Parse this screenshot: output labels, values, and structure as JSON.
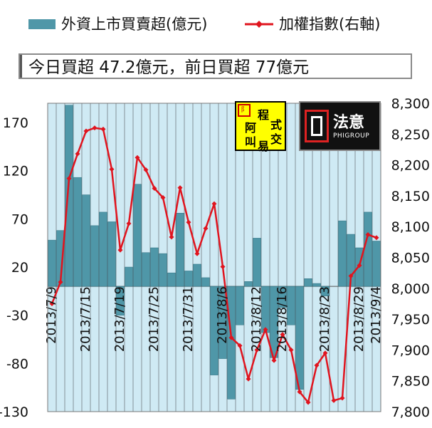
{
  "legend": {
    "bar_label": "外資上市買賣超(億元)",
    "line_label": "加權指數(右軸)"
  },
  "summary_text": "今日買超 47.2億元，前日買超 77億元",
  "logos": {
    "logo1_text": [
      "程",
      "式",
      "阿",
      "交",
      "叫",
      "易"
    ],
    "logo2_brand": "法意",
    "logo2_sub": "PHIGROUP"
  },
  "colors": {
    "bar": "#4f97a8",
    "line": "#e0141e",
    "plot_bg": "#cfeaf4",
    "grid": "#7c8a90"
  },
  "chart_data": {
    "type": "bar",
    "x_tick_labels": [
      "2013/7/9",
      "2013/7/15",
      "2013/7/19",
      "2013/7/25",
      "2013/7/31",
      "2013/8/6",
      "2013/8/12",
      "2013/8/16",
      "2013/8/23",
      "2013/8/29",
      "2013/9/4"
    ],
    "series": [
      {
        "name": "外資上市買賣超(億元)",
        "axis": "left",
        "values": [
          48,
          58,
          188,
          113,
          95,
          63,
          77,
          67,
          -30,
          20,
          106,
          35,
          40,
          34,
          14,
          76,
          16,
          23,
          9,
          -92,
          -75,
          -117,
          -40,
          5,
          50,
          -48,
          -74,
          -22,
          -40,
          -107,
          8,
          3,
          -10,
          0,
          68,
          54,
          40,
          77,
          47
        ]
      },
      {
        "name": "加權指數(右軸)",
        "axis": "right",
        "values": [
          7975,
          8010,
          8178,
          8218,
          8255,
          8260,
          8258,
          8193,
          8062,
          8105,
          8212,
          8192,
          8162,
          8147,
          8083,
          8163,
          8107,
          8056,
          8097,
          8137,
          8035,
          7920,
          7907,
          7853,
          7900,
          7933,
          7883,
          7925,
          7900,
          7832,
          7815,
          7875,
          7895,
          7818,
          7822,
          8020,
          8037,
          8087,
          8082
        ]
      }
    ],
    "y_left": {
      "ylim": [
        -130,
        190
      ],
      "ticks": [
        -130,
        -80,
        -30,
        20,
        70,
        120,
        170
      ]
    },
    "y_right": {
      "ylim": [
        7800,
        8300
      ],
      "ticks": [
        "7,800",
        "7,850",
        "7,900",
        "7,950",
        "8,000",
        "8,050",
        "8,100",
        "8,150",
        "8,200",
        "8,250",
        "8,300"
      ]
    },
    "grid": true,
    "legend_position": "top"
  }
}
